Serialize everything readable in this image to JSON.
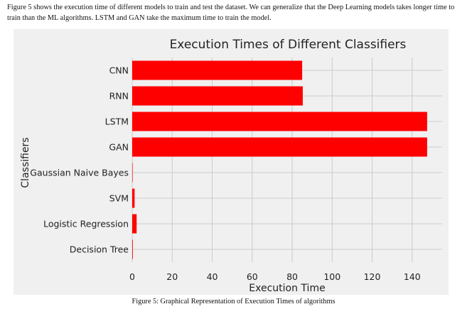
{
  "document": {
    "intro_text": "Figure 5 shows the execution time of different models to train and test the dataset. We can generalize that the Deep Learning models takes longer time to train than the ML algorithms. LSTM and GAN take the maximum time to train the model.",
    "caption": "Figure 5: Graphical Representation of Execution Times of algorithms"
  },
  "chart_data": {
    "type": "bar",
    "orientation": "horizontal",
    "title": "Execution Times of Different Classifiers",
    "xlabel": "Execution Time",
    "ylabel": "Classifiers",
    "categories": [
      "CNN",
      "RNN",
      "LSTM",
      "GAN",
      "Gaussian Naive Bayes",
      "SVM",
      "Logistic Regression",
      "Decision Tree"
    ],
    "values": [
      85,
      85.3,
      147.5,
      147.5,
      0.1,
      1.2,
      2.2,
      0.3
    ],
    "xlim": [
      0,
      155
    ],
    "xticks": [
      0,
      20,
      40,
      60,
      80,
      100,
      120,
      140
    ],
    "bar_color": "#ff0000",
    "background_color": "#f0f0f0",
    "grid": true
  }
}
